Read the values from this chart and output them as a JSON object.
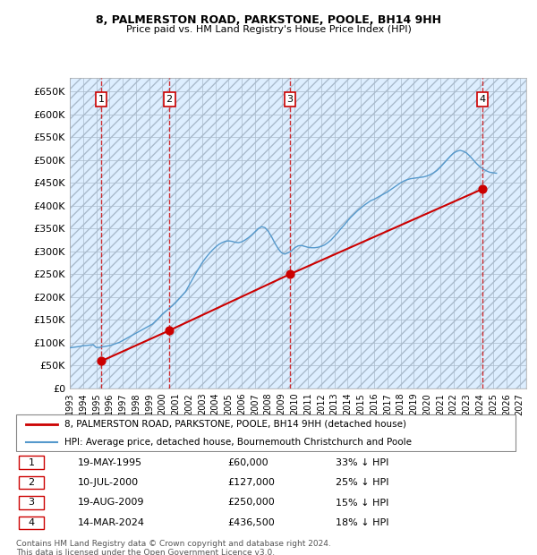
{
  "title1": "8, PALMERSTON ROAD, PARKSTONE, POOLE, BH14 9HH",
  "title2": "Price paid vs. HM Land Registry's House Price Index (HPI)",
  "ylabel": "",
  "background_color": "#ffffff",
  "plot_bg_color": "#ddeeff",
  "hatch_color": "#bbccdd",
  "grid_color": "#aabbcc",
  "purchases": [
    {
      "label": "1",
      "date_num": 1995.38,
      "price": 60000
    },
    {
      "label": "2",
      "date_num": 2000.52,
      "price": 127000
    },
    {
      "label": "3",
      "date_num": 2009.63,
      "price": 250000
    },
    {
      "label": "4",
      "date_num": 2024.19,
      "price": 436500
    }
  ],
  "purchase_color": "#cc0000",
  "hpi_color": "#5599cc",
  "legend_property_label": "8, PALMERSTON ROAD, PARKSTONE, POOLE, BH14 9HH (detached house)",
  "legend_hpi_label": "HPI: Average price, detached house, Bournemouth Christchurch and Poole",
  "table_entries": [
    {
      "num": "1",
      "date": "19-MAY-1995",
      "price": "£60,000",
      "pct": "33% ↓ HPI"
    },
    {
      "num": "2",
      "date": "10-JUL-2000",
      "price": "£127,000",
      "pct": "25% ↓ HPI"
    },
    {
      "num": "3",
      "date": "19-AUG-2009",
      "price": "£250,000",
      "pct": "15% ↓ HPI"
    },
    {
      "num": "4",
      "date": "14-MAR-2024",
      "price": "£436,500",
      "pct": "18% ↓ HPI"
    }
  ],
  "footer": "Contains HM Land Registry data © Crown copyright and database right 2024.\nThis data is licensed under the Open Government Licence v3.0.",
  "ylim": [
    0,
    680000
  ],
  "xlim_start": 1993.0,
  "xlim_end": 2027.5,
  "yticks": [
    0,
    50000,
    100000,
    150000,
    200000,
    250000,
    300000,
    350000,
    400000,
    450000,
    500000,
    550000,
    600000,
    650000
  ],
  "ytick_labels": [
    "£0",
    "£50K",
    "£100K",
    "£150K",
    "£200K",
    "£250K",
    "£300K",
    "£350K",
    "£400K",
    "£450K",
    "£500K",
    "£550K",
    "£600K",
    "£650K"
  ],
  "xticks": [
    1993,
    1994,
    1995,
    1996,
    1997,
    1998,
    1999,
    2000,
    2001,
    2002,
    2003,
    2004,
    2005,
    2006,
    2007,
    2008,
    2009,
    2010,
    2011,
    2012,
    2013,
    2014,
    2015,
    2016,
    2017,
    2018,
    2019,
    2020,
    2021,
    2022,
    2023,
    2024,
    2025,
    2026,
    2027
  ],
  "hpi_years": [
    1993,
    1993.25,
    1993.5,
    1993.75,
    1994,
    1994.25,
    1994.5,
    1994.75,
    1995,
    1995.25,
    1995.5,
    1995.75,
    1996,
    1996.25,
    1996.5,
    1996.75,
    1997,
    1997.25,
    1997.5,
    1997.75,
    1998,
    1998.25,
    1998.5,
    1998.75,
    1999,
    1999.25,
    1999.5,
    1999.75,
    2000,
    2000.25,
    2000.5,
    2000.75,
    2001,
    2001.25,
    2001.5,
    2001.75,
    2002,
    2002.25,
    2002.5,
    2002.75,
    2003,
    2003.25,
    2003.5,
    2003.75,
    2004,
    2004.25,
    2004.5,
    2004.75,
    2005,
    2005.25,
    2005.5,
    2005.75,
    2006,
    2006.25,
    2006.5,
    2006.75,
    2007,
    2007.25,
    2007.5,
    2007.75,
    2008,
    2008.25,
    2008.5,
    2008.75,
    2009,
    2009.25,
    2009.5,
    2009.75,
    2010,
    2010.25,
    2010.5,
    2010.75,
    2011,
    2011.25,
    2011.5,
    2011.75,
    2012,
    2012.25,
    2012.5,
    2012.75,
    2013,
    2013.25,
    2013.5,
    2013.75,
    2014,
    2014.25,
    2014.5,
    2014.75,
    2015,
    2015.25,
    2015.5,
    2015.75,
    2016,
    2016.25,
    2016.5,
    2016.75,
    2017,
    2017.25,
    2017.5,
    2017.75,
    2018,
    2018.25,
    2018.5,
    2018.75,
    2019,
    2019.25,
    2019.5,
    2019.75,
    2020,
    2020.25,
    2020.5,
    2020.75,
    2021,
    2021.25,
    2021.5,
    2021.75,
    2022,
    2022.25,
    2022.5,
    2022.75,
    2023,
    2023.25,
    2023.5,
    2023.75,
    2024,
    2024.25,
    2024.5,
    2024.75,
    2025,
    2025.25
  ],
  "hpi_values": [
    89000,
    90000,
    91000,
    92000,
    93500,
    94000,
    95000,
    96000,
    89700,
    90000,
    91200,
    92500,
    93800,
    96000,
    98500,
    101000,
    105000,
    109000,
    113000,
    117000,
    121000,
    125000,
    129000,
    133000,
    137000,
    141000,
    148000,
    155000,
    163000,
    169000,
    175000,
    181000,
    188000,
    196000,
    204000,
    212000,
    225000,
    238000,
    251000,
    263000,
    275000,
    285000,
    294000,
    302000,
    309000,
    315000,
    319000,
    322000,
    323000,
    322000,
    320000,
    319000,
    321000,
    325000,
    330000,
    336000,
    343000,
    350000,
    354000,
    352000,
    344000,
    332000,
    318000,
    306000,
    297000,
    294000,
    297000,
    301000,
    308000,
    312000,
    313000,
    311000,
    309000,
    308000,
    308000,
    309000,
    311000,
    314000,
    319000,
    325000,
    333000,
    341000,
    350000,
    358000,
    367000,
    375000,
    382000,
    389000,
    395000,
    401000,
    406000,
    411000,
    414000,
    418000,
    422000,
    426000,
    430000,
    435000,
    440000,
    445000,
    450000,
    454000,
    457000,
    459000,
    460000,
    461000,
    462000,
    463000,
    465000,
    468000,
    472000,
    477000,
    484000,
    492000,
    500000,
    508000,
    515000,
    519000,
    521000,
    519000,
    515000,
    508000,
    500000,
    492000,
    485000,
    480000,
    476000,
    473000,
    472000,
    471000
  ]
}
